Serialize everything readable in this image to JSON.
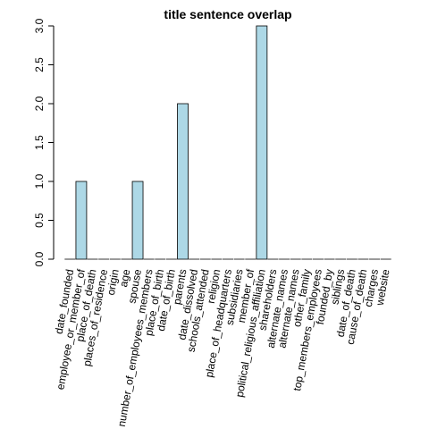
{
  "chart_data": {
    "type": "bar",
    "title": "title sentence overlap",
    "xlabel": "",
    "ylabel": "",
    "ylim": [
      0,
      3
    ],
    "yticks": [
      "0.0",
      "0.5",
      "1.0",
      "1.5",
      "2.0",
      "2.5",
      "3.0"
    ],
    "bar_color": "#add8e6",
    "categories": [
      "date_founded",
      "employee_or_member_of",
      "place_of_death",
      "places_of_residence",
      "origin",
      "age",
      "spouse",
      "number_of_employees_members",
      "place_of_birth",
      "date_of_birth",
      "parents",
      "date_dissolved",
      "schools_attended",
      "religion",
      "place_of_headquarters",
      "subsidiaries",
      "member_of",
      "political_religious_affiliation",
      "shareholders",
      "alternate_names",
      "alternate_names",
      "other_family",
      "top_members_employees",
      "founded_by",
      "siblings",
      "date_of_death",
      "cause_of_death",
      "charges",
      "website"
    ],
    "values": [
      0,
      1,
      0,
      0,
      0,
      0,
      1,
      0,
      0,
      0,
      2,
      0,
      0,
      0,
      0,
      0,
      0,
      3,
      0,
      0,
      0,
      0,
      0,
      0,
      0,
      0,
      0,
      0,
      0
    ]
  }
}
